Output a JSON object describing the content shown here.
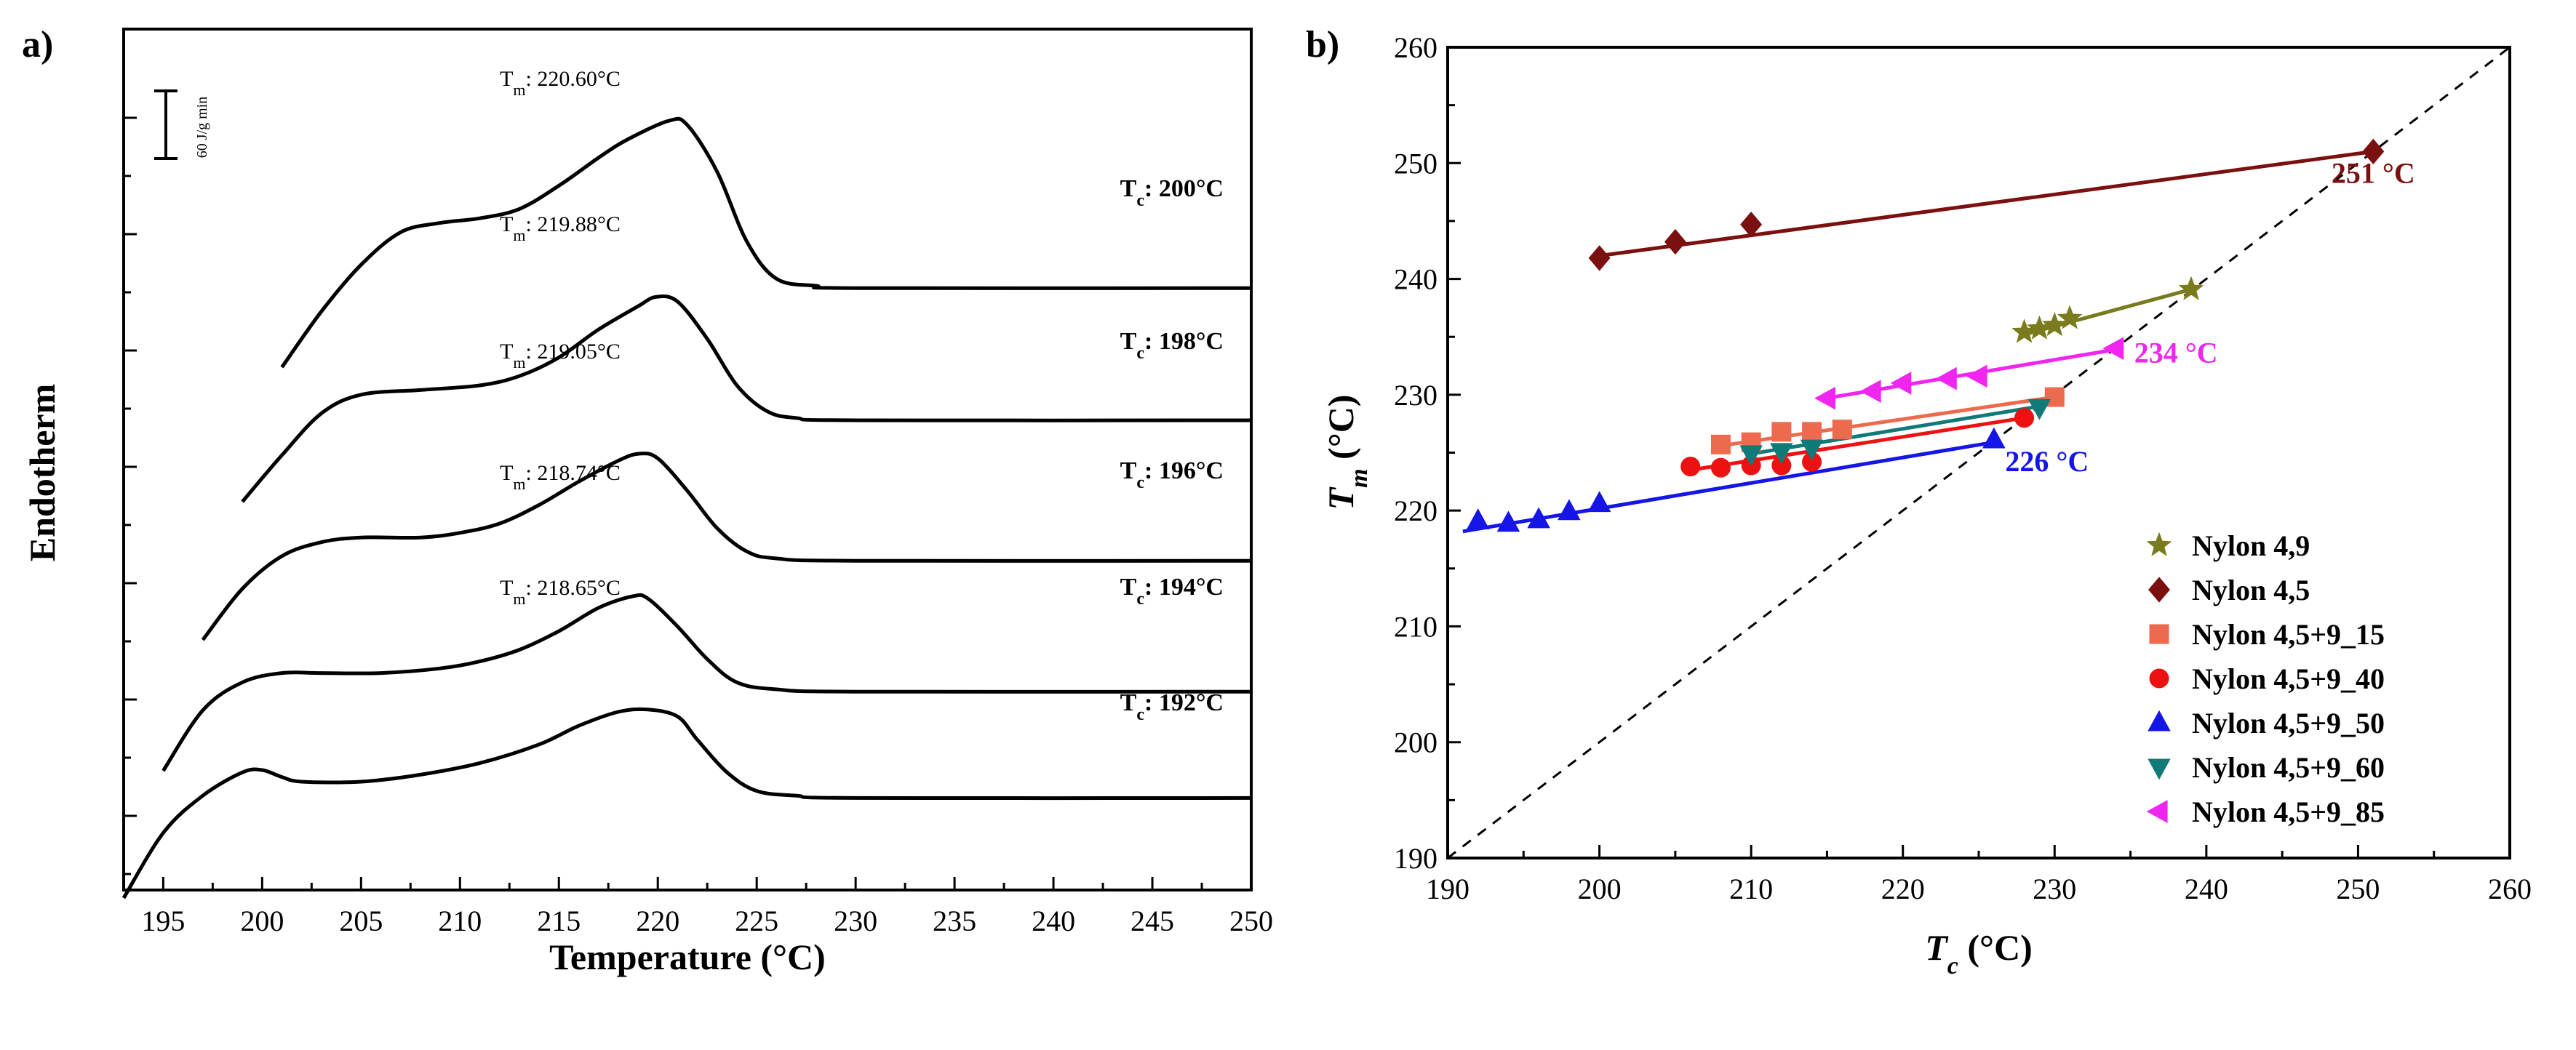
{
  "chart_data": [
    {
      "id": "a",
      "type": "line",
      "panel_label": "a)",
      "title": "",
      "xlabel": "Temperature (°C)",
      "ylabel": "Endotherm",
      "xlim": [
        193,
        250
      ],
      "xticks": [
        195,
        200,
        205,
        210,
        215,
        220,
        225,
        230,
        235,
        240,
        245,
        250
      ],
      "scale_bar_label": "60 J/g min",
      "series": [
        {
          "name": "Tc: 200°C",
          "tc_prefix": "T",
          "tc_sub": "c",
          "tc_value": ": 200°C",
          "tm_prefix": "T",
          "tm_sub": "m",
          "tm_value": ": 220.60°C",
          "peak_temp": 220.6,
          "points": [
            [
              201,
              0
            ],
            [
              203,
              12
            ],
            [
              205,
              22
            ],
            [
              207,
              29
            ],
            [
              209,
              31
            ],
            [
              211,
              32
            ],
            [
              213,
              34
            ],
            [
              215,
              39
            ],
            [
              217,
              45
            ],
            [
              218.5,
              49
            ],
            [
              220.6,
              53
            ],
            [
              221.5,
              52
            ],
            [
              223,
              42
            ],
            [
              224.5,
              27
            ],
            [
              226,
              19
            ],
            [
              228,
              17.5
            ],
            [
              230,
              17
            ],
            [
              250,
              17
            ]
          ]
        },
        {
          "name": "Tc: 198°C",
          "tc_prefix": "T",
          "tc_sub": "c",
          "tc_value": ": 198°C",
          "tm_prefix": "T",
          "tm_sub": "m",
          "tm_value": ": 219.88°C",
          "peak_temp": 219.88,
          "points": [
            [
              199,
              0
            ],
            [
              201,
              10
            ],
            [
              203,
              19
            ],
            [
              205,
              23
            ],
            [
              208,
              24
            ],
            [
              211,
              25
            ],
            [
              213,
              27
            ],
            [
              215,
              31
            ],
            [
              217,
              37
            ],
            [
              219,
              42
            ],
            [
              219.9,
              44
            ],
            [
              221,
              43
            ],
            [
              222.5,
              35
            ],
            [
              224,
              25
            ],
            [
              225.5,
              19.5
            ],
            [
              227,
              18
            ],
            [
              230,
              17.5
            ],
            [
              250,
              17.5
            ]
          ]
        },
        {
          "name": "Tc: 196°C",
          "tc_prefix": "T",
          "tc_sub": "c",
          "tc_value": ": 196°C",
          "tm_prefix": "T",
          "tm_sub": "m",
          "tm_value": ": 219.05°C",
          "peak_temp": 219.05,
          "points": [
            [
              197,
              0
            ],
            [
              199,
              11
            ],
            [
              201,
              18
            ],
            [
              203,
              21
            ],
            [
              205,
              22
            ],
            [
              208,
              22
            ],
            [
              210,
              23
            ],
            [
              212,
              25
            ],
            [
              214,
              29
            ],
            [
              216,
              34
            ],
            [
              218,
              38.5
            ],
            [
              219.05,
              40
            ],
            [
              220,
              39
            ],
            [
              221.5,
              32
            ],
            [
              223,
              24
            ],
            [
              224.5,
              19
            ],
            [
              226,
              17.5
            ],
            [
              230,
              17
            ],
            [
              250,
              17
            ]
          ]
        },
        {
          "name": "Tc: 194°C",
          "tc_prefix": "T",
          "tc_sub": "c",
          "tc_value": ": 194°C",
          "tm_prefix": "T",
          "tm_sub": "m",
          "tm_value": ": 218.74°C",
          "peak_temp": 218.74,
          "points": [
            [
              195,
              0
            ],
            [
              197,
              13
            ],
            [
              199,
              19
            ],
            [
              201,
              21
            ],
            [
              203,
              21
            ],
            [
              206,
              21
            ],
            [
              209,
              22
            ],
            [
              211,
              23.5
            ],
            [
              213,
              26
            ],
            [
              215,
              30
            ],
            [
              217,
              35
            ],
            [
              218.74,
              37.5
            ],
            [
              219.5,
              37
            ],
            [
              221,
              31
            ],
            [
              222.5,
              24
            ],
            [
              224,
              19
            ],
            [
              226,
              17.5
            ],
            [
              230,
              17
            ],
            [
              250,
              17
            ]
          ]
        },
        {
          "name": "Tc: 192°C",
          "tc_prefix": "T",
          "tc_sub": "c",
          "tc_value": ": 192°C",
          "tm_prefix": "T",
          "tm_sub": "m",
          "tm_value": ": 218.65°C",
          "peak_temp": 218.65,
          "points": [
            [
              193,
              0
            ],
            [
              195,
              14
            ],
            [
              197,
              22
            ],
            [
              199,
              27
            ],
            [
              200,
              27.5
            ],
            [
              201,
              26
            ],
            [
              202,
              25
            ],
            [
              205,
              25
            ],
            [
              208,
              26.5
            ],
            [
              211,
              29
            ],
            [
              214,
              33
            ],
            [
              216,
              37
            ],
            [
              218,
              40
            ],
            [
              219.5,
              40.5
            ],
            [
              221,
              39
            ],
            [
              222,
              34
            ],
            [
              223.5,
              27
            ],
            [
              225,
              23
            ],
            [
              227,
              22
            ],
            [
              230,
              21.5
            ],
            [
              250,
              21.5
            ]
          ]
        }
      ]
    },
    {
      "id": "b",
      "type": "scatter",
      "panel_label": "b)",
      "title": "",
      "xlabel_prefix": "T",
      "xlabel_sub": "c",
      "xlabel_suffix": " (°C)",
      "ylabel_prefix": "T",
      "ylabel_sub": "m",
      "ylabel_suffix": " (°C)",
      "xlim": [
        190,
        260
      ],
      "ylim": [
        190,
        260
      ],
      "xticks": [
        190,
        200,
        210,
        220,
        230,
        240,
        250,
        260
      ],
      "yticks": [
        190,
        200,
        210,
        220,
        230,
        240,
        250,
        260
      ],
      "diagonal": "Tm = Tc",
      "legend_position": "bottom-right",
      "series": [
        {
          "name": "Nylon 4,9",
          "marker": "star",
          "color": "#7a7a1e",
          "x": [
            228,
            229,
            230,
            231,
            239
          ],
          "y": [
            235.4,
            235.7,
            236.0,
            236.6,
            239.1
          ],
          "fit": [
            [
              228,
              235.2
            ],
            [
              239,
              239.1
            ]
          ]
        },
        {
          "name": "Nylon 4,5",
          "marker": "diamond",
          "color": "#7b1010",
          "x": [
            200,
            205,
            210,
            251
          ],
          "y": [
            241.8,
            243.2,
            244.7,
            251.0
          ],
          "fit": [
            [
              200,
              242.0
            ],
            [
              251,
              251.0
            ]
          ]
        },
        {
          "name": "Nylon 4,5+9_15",
          "marker": "square",
          "color": "#ee6a4f",
          "x": [
            208,
            210,
            212,
            214,
            216,
            230
          ],
          "y": [
            225.7,
            225.9,
            226.8,
            226.8,
            227.0,
            229.8
          ],
          "fit": [
            [
              208,
              225.6
            ],
            [
              230,
              229.8
            ]
          ]
        },
        {
          "name": "Nylon 4,5+9_40",
          "marker": "circle",
          "color": "#ee1111",
          "x": [
            206,
            208,
            210,
            212,
            214,
            228
          ],
          "y": [
            223.8,
            223.7,
            223.9,
            223.9,
            224.2,
            228.0
          ],
          "fit": [
            [
              206,
              223.5
            ],
            [
              228,
              228.0
            ]
          ]
        },
        {
          "name": "Nylon 4,5+9_50",
          "marker": "triangle-up",
          "color": "#1515e6",
          "x": [
            192,
            194,
            196,
            198,
            200,
            226
          ],
          "y": [
            219.1,
            218.9,
            219.2,
            219.9,
            220.6,
            226.1
          ],
          "fit": [
            [
              191,
              218.2
            ],
            [
              226,
              225.9
            ]
          ]
        },
        {
          "name": "Nylon 4,5+9_60",
          "marker": "triangle-down",
          "color": "#0f7a78",
          "x": [
            210,
            212,
            214,
            229
          ],
          "y": [
            224.9,
            225.1,
            225.4,
            228.9
          ],
          "fit": [
            [
              210,
              224.9
            ],
            [
              229,
              229.0
            ]
          ]
        },
        {
          "name": "Nylon 4,5+9_85",
          "marker": "triangle-left",
          "color": "#f025f0",
          "x": [
            215,
            218,
            220,
            223,
            225,
            234
          ],
          "y": [
            229.7,
            230.3,
            231.0,
            231.4,
            231.6,
            234.0
          ],
          "fit": [
            [
              214.5,
              229.6
            ],
            [
              234,
              233.9
            ]
          ]
        }
      ],
      "annotations": [
        {
          "text": "251 °C",
          "color": "#7b1010",
          "at": [
            251,
            248.3
          ]
        },
        {
          "text": "234 °C",
          "color": "#f025f0",
          "at": [
            238,
            232.8
          ]
        },
        {
          "text": "226 °C",
          "color": "#1515e6",
          "at": [
            229.5,
            223.4
          ]
        }
      ]
    }
  ]
}
